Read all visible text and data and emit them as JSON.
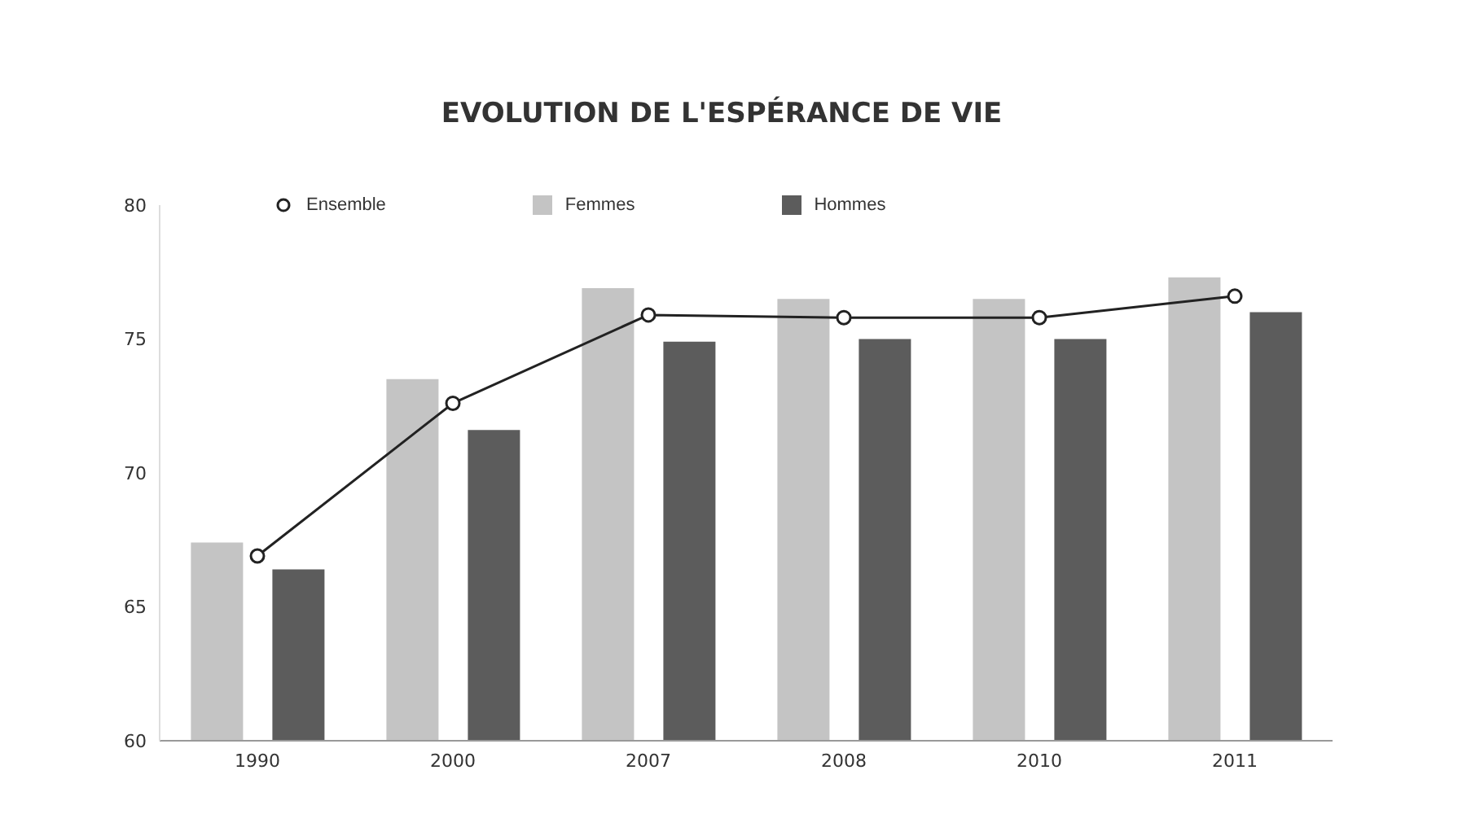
{
  "chart_data": {
    "type": "bar",
    "title": "EVOLUTION DE L'ESPÉRANCE DE VIE",
    "categories": [
      "1990",
      "2000",
      "2007",
      "2008",
      "2010",
      "2011"
    ],
    "series": [
      {
        "name": "Ensemble",
        "type": "line",
        "color": "#222222",
        "marker": "circle",
        "values": [
          66.9,
          72.6,
          75.9,
          75.8,
          75.8,
          76.6
        ]
      },
      {
        "name": "Femmes",
        "color": "#c4c4c4",
        "values": [
          67.4,
          73.5,
          76.9,
          76.5,
          76.5,
          77.3
        ]
      },
      {
        "name": "Hommes",
        "color": "#5c5c5c",
        "values": [
          66.4,
          71.6,
          74.9,
          75.0,
          75.0,
          76.0
        ]
      }
    ],
    "ylim": [
      60,
      80
    ],
    "yticks": [
      60,
      65,
      70,
      75,
      80
    ],
    "legend": "top left"
  }
}
